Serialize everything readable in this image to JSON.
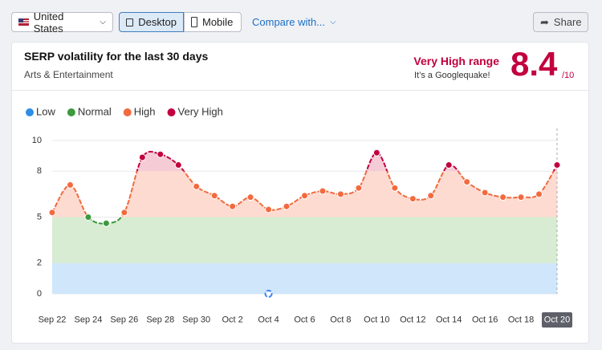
{
  "toolbar": {
    "country": "United States",
    "devices": [
      "Desktop",
      "Mobile"
    ],
    "compare": "Compare with...",
    "share": "Share"
  },
  "header": {
    "title": "SERP volatility for the last 30 days",
    "category": "Arts & Entertainment",
    "range_label": "Very High range",
    "range_note": "It’s a Googlequake!",
    "score": 8.4,
    "score_max": "/10"
  },
  "chart_data": {
    "type": "line",
    "legend": [
      {
        "name": "Low",
        "color": "#2e8de6",
        "fill": "#d0e6fb"
      },
      {
        "name": "Normal",
        "color": "#3d9a3d",
        "fill": "#d7ecd3"
      },
      {
        "name": "High",
        "color": "#f26a3e",
        "fill": "#fddbd1"
      },
      {
        "name": "Very High",
        "color": "#c2003f",
        "fill": "#f5cbd6"
      }
    ],
    "categories": [
      "Sep 22",
      null,
      "Sep 24",
      null,
      "Sep 26",
      null,
      "Sep 28",
      null,
      "Sep 30",
      null,
      "Oct 2",
      null,
      "Oct 4",
      null,
      "Oct 6",
      null,
      "Oct 8",
      null,
      "Oct 10",
      null,
      "Oct 12",
      null,
      "Oct 14",
      null,
      "Oct 16",
      null,
      "Oct 18",
      null,
      "Oct 20"
    ],
    "values": [
      5.3,
      7.1,
      5.0,
      4.6,
      5.3,
      8.9,
      9.1,
      8.4,
      7.0,
      6.4,
      5.7,
      6.3,
      5.5,
      5.7,
      6.4,
      6.7,
      6.5,
      6.9,
      9.2,
      6.9,
      6.2,
      6.4,
      8.4,
      7.3,
      6.6,
      6.3,
      6.3,
      6.5,
      8.4
    ],
    "ylim": [
      0,
      10
    ],
    "yticks": [
      0,
      2,
      5,
      8,
      10
    ],
    "grid": true
  }
}
